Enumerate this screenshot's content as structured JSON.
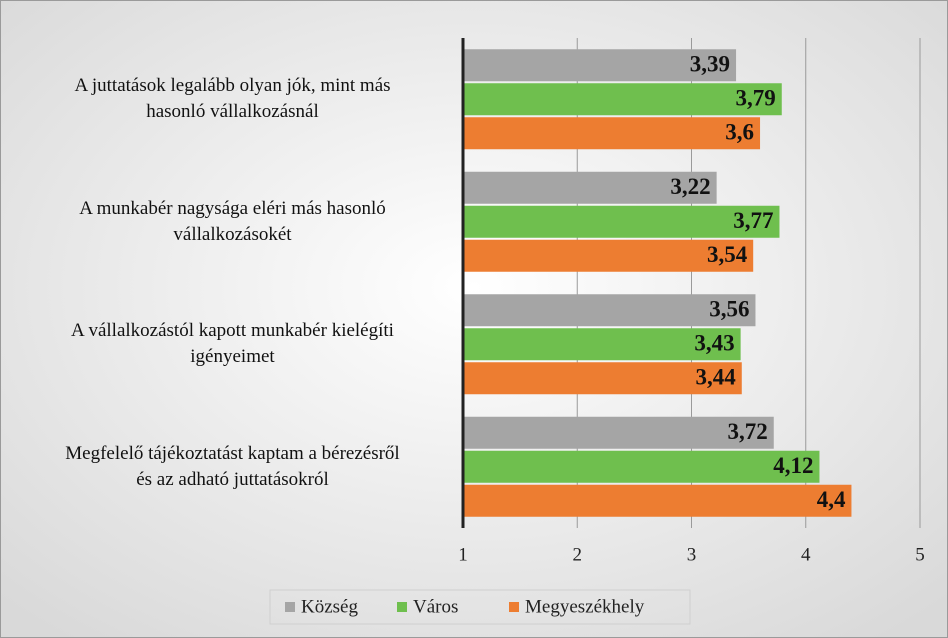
{
  "chart_data": {
    "type": "bar",
    "orientation": "horizontal",
    "categories": [
      "A juttatások legalább olyan jók, mint más\nhasonló vállalkozásnál",
      "A munkabér nagysága eléri más hasonló\nvállalkozásokét",
      "A vállalkozástól kapott munkabér kielégíti\nigényeimet",
      "Megfelelő tájékoztatást kaptam a bérezésről\nés az adható juttatásokról"
    ],
    "series": [
      {
        "name": "Község",
        "color": "#a5a5a5",
        "values": [
          3.39,
          3.22,
          3.56,
          3.72
        ],
        "value_labels": [
          "3,39",
          "3,22",
          "3,56",
          "3,72"
        ]
      },
      {
        "name": "Város",
        "color": "#6fbf4e",
        "values": [
          3.79,
          3.77,
          3.43,
          4.12
        ],
        "value_labels": [
          "3,79",
          "3,77",
          "3,43",
          "4,12"
        ]
      },
      {
        "name": "Megyeszékhely",
        "color": "#ed7d31",
        "values": [
          3.6,
          3.54,
          3.44,
          4.4
        ],
        "value_labels": [
          "3,6",
          "3,54",
          "3,44",
          "4,4"
        ]
      }
    ],
    "xlim": [
      1,
      5
    ],
    "xticks": [
      1,
      2,
      3,
      4,
      5
    ],
    "grid": true,
    "legend": "bottom"
  }
}
